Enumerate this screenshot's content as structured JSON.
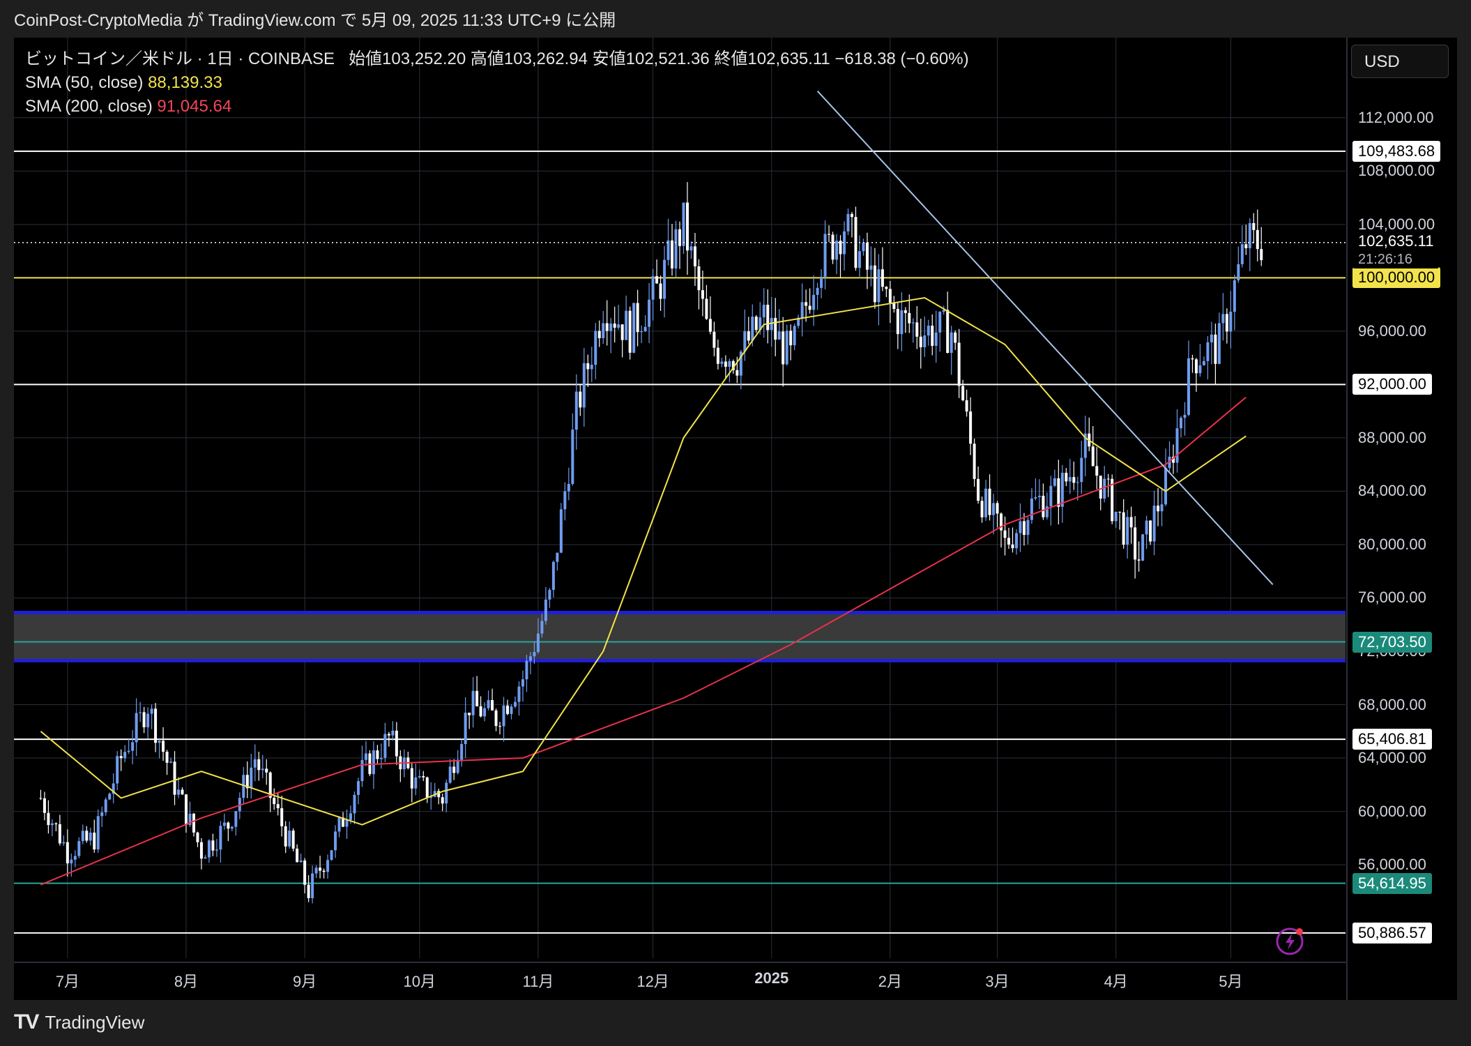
{
  "header": {
    "title": "CoinPost-CryptoMedia が TradingView.com で 5月 09, 2025 11:33 UTC+9 に公開"
  },
  "legend": {
    "symbol": "ビットコイン／米ドル · 1日 · COINBASE",
    "ohlc": "始値103,252.20 高値103,262.94 安値102,521.36 終値102,635.11 −618.38 (−0.60%)",
    "sma50_label": "SMA (50, close)",
    "sma50_value": "88,139.33",
    "sma200_label": "SMA (200, close)",
    "sma200_value": "91,045.64"
  },
  "currency_button": "USD",
  "footer": {
    "brand": "TradingView"
  },
  "colors": {
    "background": "#000000",
    "candle": "#6f9cf0",
    "candle_alt": "#ffffff",
    "sma50": "#f2e34b",
    "sma200": "#e8324b",
    "support_band": "#3a3a3a",
    "band_edge": "#1f1fd6",
    "trendline": "#a8c4e8",
    "grid": "#2b2f3b"
  },
  "icons": {
    "flash": "lightning-icon",
    "logo": "tradingview-logo-icon"
  },
  "chart_data": {
    "type": "candlestick",
    "title": "ビットコイン／米ドル · 1日 · COINBASE",
    "ylim": [
      49000,
      118000
    ],
    "y_ticks": [
      "112,000.00",
      "108,000.00",
      "104,000.00",
      "96,000.00",
      "88,000.00",
      "84,000.00",
      "80,000.00",
      "76,000.00",
      "72,000.00",
      "68,000.00",
      "64,000.00",
      "60,000.00",
      "56,000.00"
    ],
    "y_tick_values": [
      112000,
      108000,
      104000,
      96000,
      88000,
      84000,
      80000,
      76000,
      72000,
      68000,
      64000,
      60000,
      56000
    ],
    "x_ticks": [
      "7月",
      "8月",
      "9月",
      "10月",
      "11月",
      "12月",
      "2025",
      "2月",
      "3月",
      "4月",
      "5月"
    ],
    "horizontal_levels": [
      {
        "value": 109483.68,
        "label": "109,483.68",
        "color": "#ffffff",
        "style": "white"
      },
      {
        "value": 100000.0,
        "label": "100,000.00",
        "color": "#f2e34b",
        "style": "yellow"
      },
      {
        "value": 92000.0,
        "label": "92,000.00",
        "color": "#ffffff",
        "style": "white"
      },
      {
        "value": 72703.5,
        "label": "72,703.50",
        "color": "#26a69a",
        "style": "teal"
      },
      {
        "value": 65406.81,
        "label": "65,406.81",
        "color": "#ffffff",
        "style": "white"
      },
      {
        "value": 54614.95,
        "label": "54,614.95",
        "color": "#26a69a",
        "style": "teal"
      },
      {
        "value": 50886.57,
        "label": "50,886.57",
        "color": "#ffffff",
        "style": "white"
      }
    ],
    "current_price": {
      "value": 102635.11,
      "label": "102,635.11",
      "countdown": "21:26:16"
    },
    "support_zone": {
      "low": 71300,
      "high": 74900
    },
    "closes_weekly": [
      {
        "date": "2024-06-24",
        "close": 61000
      },
      {
        "date": "2024-07-01",
        "close": 57000
      },
      {
        "date": "2024-07-08",
        "close": 58000
      },
      {
        "date": "2024-07-15",
        "close": 64000
      },
      {
        "date": "2024-07-22",
        "close": 68000
      },
      {
        "date": "2024-07-29",
        "close": 62000
      },
      {
        "date": "2024-08-05",
        "close": 57000
      },
      {
        "date": "2024-08-12",
        "close": 59000
      },
      {
        "date": "2024-08-19",
        "close": 64000
      },
      {
        "date": "2024-08-26",
        "close": 59000
      },
      {
        "date": "2024-09-02",
        "close": 54000
      },
      {
        "date": "2024-09-09",
        "close": 58000
      },
      {
        "date": "2024-09-16",
        "close": 63000
      },
      {
        "date": "2024-09-23",
        "close": 65500
      },
      {
        "date": "2024-09-30",
        "close": 62000
      },
      {
        "date": "2024-10-07",
        "close": 61000
      },
      {
        "date": "2024-10-14",
        "close": 68000
      },
      {
        "date": "2024-10-21",
        "close": 67000
      },
      {
        "date": "2024-10-28",
        "close": 70000
      },
      {
        "date": "2024-11-04",
        "close": 76000
      },
      {
        "date": "2024-11-11",
        "close": 90000
      },
      {
        "date": "2024-11-18",
        "close": 98000
      },
      {
        "date": "2024-11-25",
        "close": 96000
      },
      {
        "date": "2024-12-02",
        "close": 99000
      },
      {
        "date": "2024-12-09",
        "close": 104000
      },
      {
        "date": "2024-12-16",
        "close": 95000
      },
      {
        "date": "2024-12-23",
        "close": 94000
      },
      {
        "date": "2024-12-30",
        "close": 97000
      },
      {
        "date": "2025-01-06",
        "close": 94000
      },
      {
        "date": "2025-01-13",
        "close": 101000
      },
      {
        "date": "2025-01-20",
        "close": 104000
      },
      {
        "date": "2025-01-27",
        "close": 100000
      },
      {
        "date": "2025-02-03",
        "close": 97000
      },
      {
        "date": "2025-02-10",
        "close": 96000
      },
      {
        "date": "2025-02-17",
        "close": 96000
      },
      {
        "date": "2025-02-24",
        "close": 84000
      },
      {
        "date": "2025-03-03",
        "close": 80000
      },
      {
        "date": "2025-03-10",
        "close": 83000
      },
      {
        "date": "2025-03-17",
        "close": 84000
      },
      {
        "date": "2025-03-24",
        "close": 87000
      },
      {
        "date": "2025-03-31",
        "close": 83000
      },
      {
        "date": "2025-04-07",
        "close": 79000
      },
      {
        "date": "2025-04-14",
        "close": 84500
      },
      {
        "date": "2025-04-21",
        "close": 94000
      },
      {
        "date": "2025-04-28",
        "close": 95000
      },
      {
        "date": "2025-05-05",
        "close": 102635
      }
    ],
    "sma50_trend": [
      {
        "date": "2024-06-24",
        "value": 66000
      },
      {
        "date": "2024-07-15",
        "value": 61000
      },
      {
        "date": "2024-08-05",
        "value": 63000
      },
      {
        "date": "2024-08-26",
        "value": 61000
      },
      {
        "date": "2024-09-16",
        "value": 59000
      },
      {
        "date": "2024-10-07",
        "value": 61500
      },
      {
        "date": "2024-10-28",
        "value": 63000
      },
      {
        "date": "2024-11-18",
        "value": 72000
      },
      {
        "date": "2024-12-09",
        "value": 88000
      },
      {
        "date": "2024-12-30",
        "value": 96500
      },
      {
        "date": "2025-01-20",
        "value": 97500
      },
      {
        "date": "2025-02-10",
        "value": 98500
      },
      {
        "date": "2025-03-03",
        "value": 95000
      },
      {
        "date": "2025-03-24",
        "value": 88000
      },
      {
        "date": "2025-04-14",
        "value": 84000
      },
      {
        "date": "2025-05-05",
        "value": 88139
      }
    ],
    "sma200_trend": [
      {
        "date": "2024-06-24",
        "value": 54500
      },
      {
        "date": "2024-08-05",
        "value": 59500
      },
      {
        "date": "2024-09-16",
        "value": 63500
      },
      {
        "date": "2024-10-28",
        "value": 64000
      },
      {
        "date": "2024-12-09",
        "value": 68500
      },
      {
        "date": "2025-01-06",
        "value": 72500
      },
      {
        "date": "2025-02-03",
        "value": 77000
      },
      {
        "date": "2025-03-03",
        "value": 81500
      },
      {
        "date": "2025-04-14",
        "value": 86000
      },
      {
        "date": "2025-05-05",
        "value": 91046
      }
    ],
    "trendline": [
      {
        "date": "2025-01-13",
        "value": 114000
      },
      {
        "date": "2025-05-12",
        "value": 77000
      }
    ],
    "grid": true
  }
}
